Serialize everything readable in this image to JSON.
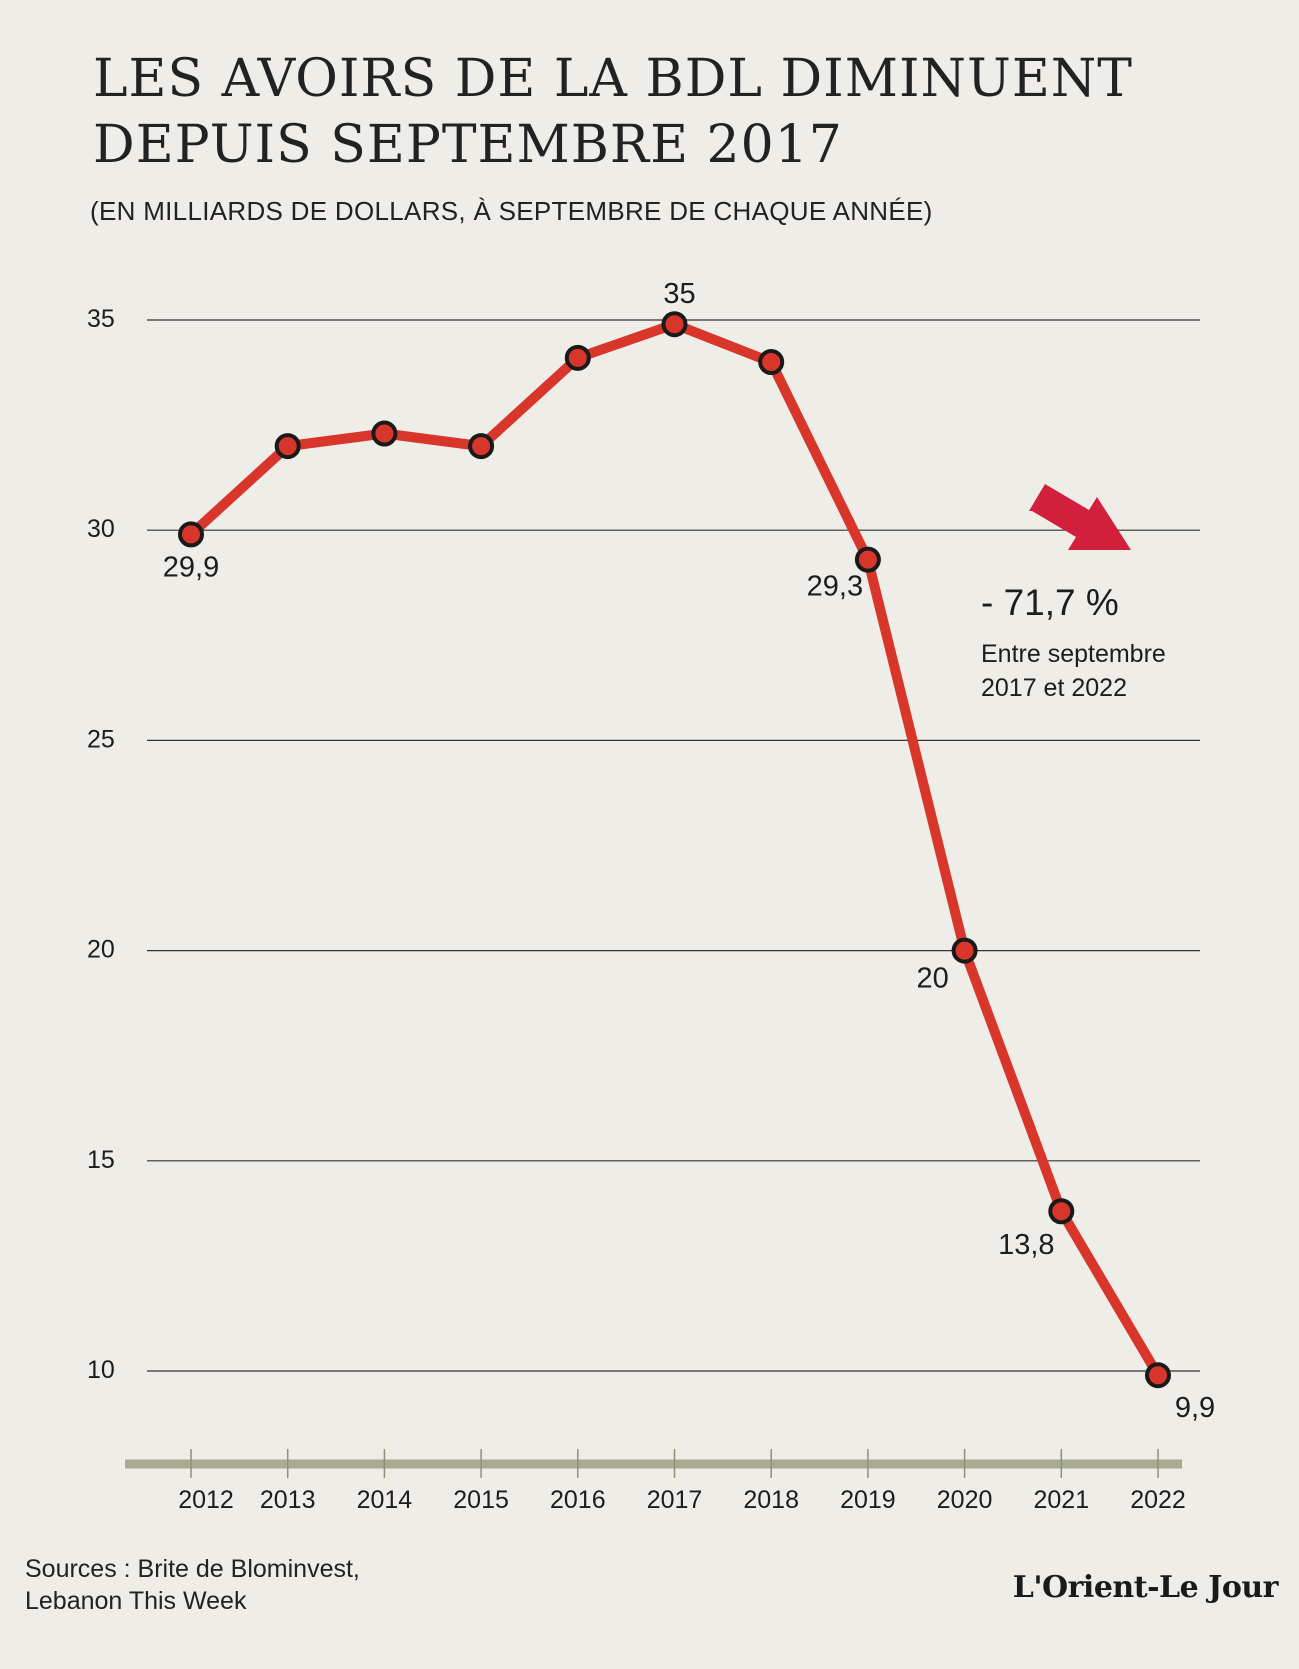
{
  "header": {
    "title_line1": "LES AVOIRS DE LA BDL DIMINUENT",
    "title_line2": "DEPUIS SEPTEMBRE 2017",
    "subtitle": "(EN MILLIARDS DE DOLLARS, À SEPTEMBRE DE CHAQUE ANNÉE)"
  },
  "chart_data": {
    "type": "line",
    "title": "LES AVOIRS DE LA BDL DIMINUENT DEPUIS SEPTEMBRE 2017",
    "subtitle": "(EN MILLIARDS DE DOLLARS, À SEPTEMBRE DE CHAQUE ANNÉE)",
    "x": [
      "2012",
      "2013",
      "2014",
      "2015",
      "2016",
      "2017",
      "2018",
      "2019",
      "2020",
      "2021",
      "2022"
    ],
    "series": [
      {
        "values": [
          29.9,
          32,
          32.3,
          32,
          34.1,
          34.9,
          34,
          29.3,
          20,
          13.8,
          9.9
        ],
        "color": "#d9362b"
      }
    ],
    "data_labels": [
      {
        "index": 0,
        "text": "29,9"
      },
      {
        "index": 5,
        "text": "35"
      },
      {
        "index": 7,
        "text": "29,3"
      },
      {
        "index": 8,
        "text": "20"
      },
      {
        "index": 9,
        "text": "13,8"
      },
      {
        "index": 10,
        "text": "9,9"
      }
    ],
    "yticks": [
      10,
      15,
      20,
      25,
      30,
      35
    ],
    "ylim": [
      8,
      35.5
    ],
    "grid": true,
    "annotation": {
      "value": "- 71,7 %",
      "text_line1": "Entre septembre",
      "text_line2": "2017 et 2022",
      "arrow_color": "#d21f3c"
    },
    "colors": {
      "background": "#efede8",
      "line": "#d9362b",
      "marker_stroke": "#1a1a1a",
      "grid": "#333333",
      "axis_bar": "#a8ab92"
    }
  },
  "footer": {
    "sources_line1": "Sources : Brite de Blominvest,",
    "sources_line2": "Lebanon This Week",
    "logo": "L'Orient-Le Jour"
  }
}
